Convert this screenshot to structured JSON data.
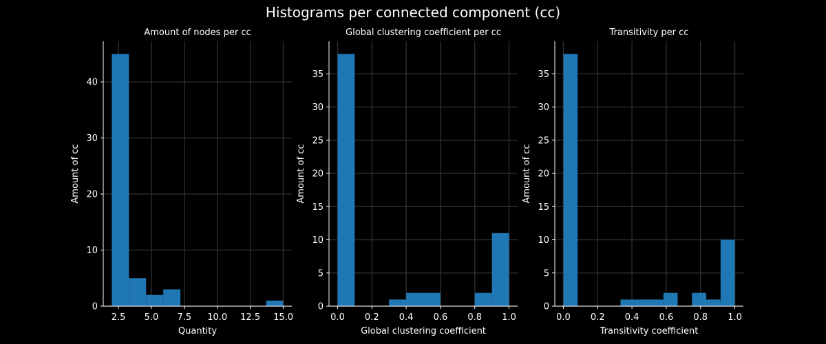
{
  "figure": {
    "title": "Histograms per connected component (cc)",
    "background": "#000000",
    "bar_color": "#1f77b4",
    "grid_color": "#2b2b2b"
  },
  "chart_data": [
    {
      "type": "bar",
      "title": "Amount of nodes per cc",
      "xlabel": "Quantity",
      "ylabel": "Amount of cc",
      "xlim": [
        1.35,
        15.65
      ],
      "ylim": [
        0,
        47.25
      ],
      "xticks": [
        2.5,
        5.0,
        7.5,
        10.0,
        12.5,
        15.0
      ],
      "xtick_labels": [
        "2.5",
        "5.0",
        "7.5",
        "10.0",
        "12.5",
        "15.0"
      ],
      "yticks": [
        0,
        10,
        20,
        30,
        40
      ],
      "ytick_labels": [
        "0",
        "10",
        "20",
        "30",
        "40"
      ],
      "grid": true,
      "bin_edges": [
        2.0,
        3.3,
        4.6,
        5.9,
        7.2,
        8.5,
        9.8,
        11.1,
        12.4,
        13.7,
        15.0
      ],
      "values": [
        45,
        5,
        2,
        3,
        0,
        0,
        0,
        0,
        0,
        1
      ]
    },
    {
      "type": "bar",
      "title": "Global clustering coefficient per cc",
      "xlabel": "Global clustering coefficient",
      "ylabel": "Amount of cc",
      "xlim": [
        -0.05,
        1.05
      ],
      "ylim": [
        0,
        39.9
      ],
      "xticks": [
        0.0,
        0.2,
        0.4,
        0.6,
        0.8,
        1.0
      ],
      "xtick_labels": [
        "0.0",
        "0.2",
        "0.4",
        "0.6",
        "0.8",
        "1.0"
      ],
      "yticks": [
        0,
        5,
        10,
        15,
        20,
        25,
        30,
        35
      ],
      "ytick_labels": [
        "0",
        "5",
        "10",
        "15",
        "20",
        "25",
        "30",
        "35"
      ],
      "grid": true,
      "bin_edges": [
        0.0,
        0.1,
        0.2,
        0.3,
        0.4,
        0.5,
        0.6,
        0.7,
        0.8,
        0.9,
        1.0
      ],
      "values": [
        38,
        0,
        0,
        1,
        2,
        2,
        0,
        0,
        2,
        11
      ]
    },
    {
      "type": "bar",
      "title": "Transitivity per cc",
      "xlabel": "Transitivity coefficient",
      "ylabel": "Amount of cc",
      "xlim": [
        -0.05,
        1.05
      ],
      "ylim": [
        0,
        39.9
      ],
      "xticks": [
        0.0,
        0.2,
        0.4,
        0.6,
        0.8,
        1.0
      ],
      "xtick_labels": [
        "0.0",
        "0.2",
        "0.4",
        "0.6",
        "0.8",
        "1.0"
      ],
      "yticks": [
        0,
        5,
        10,
        15,
        20,
        25,
        30,
        35
      ],
      "ytick_labels": [
        "0",
        "5",
        "10",
        "15",
        "20",
        "25",
        "30",
        "35"
      ],
      "grid": true,
      "bin_edges": [
        0.0,
        0.0833,
        0.1667,
        0.25,
        0.3333,
        0.4167,
        0.5,
        0.5833,
        0.6667,
        0.75,
        0.8333,
        0.9167,
        1.0
      ],
      "values": [
        38,
        0,
        0,
        0,
        1,
        1,
        1,
        2,
        0,
        2,
        1,
        10
      ]
    }
  ]
}
